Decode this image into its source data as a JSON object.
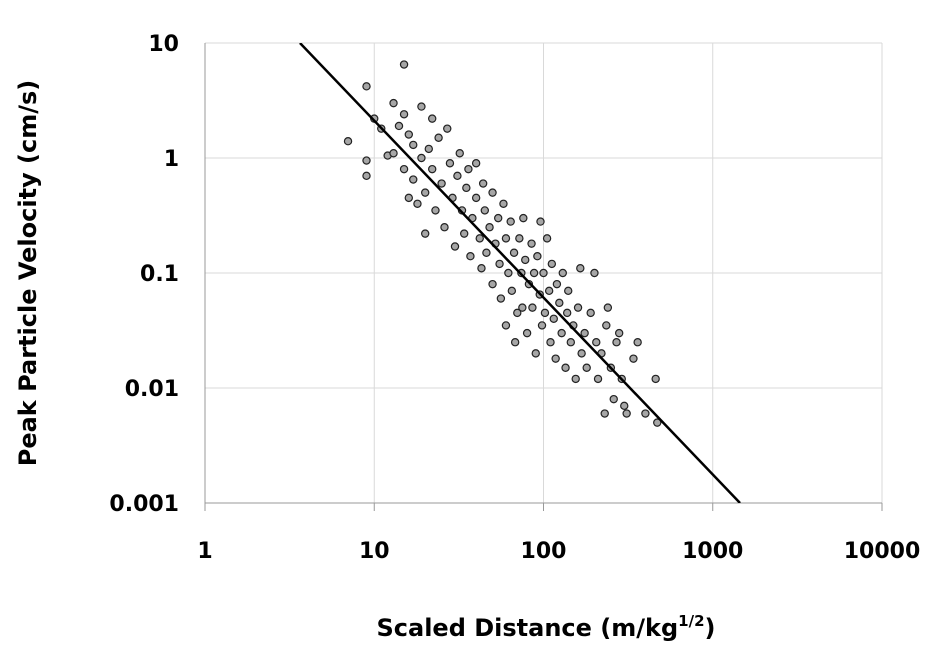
{
  "chart_data": {
    "type": "scatter",
    "x_label": "Scaled Distance (m/kg",
    "x_label_sup": "1/2",
    "x_label_end": ")",
    "y_label": "Peak Particle Velocity (cm/s)",
    "log_x": true,
    "log_y": true,
    "grid": true,
    "xlim": [
      1,
      10000
    ],
    "xticks": [
      1,
      10,
      100,
      1000,
      10000
    ],
    "ylim": [
      0.001,
      10
    ],
    "yticks": [
      0.001,
      0.01,
      0.1,
      1,
      10
    ],
    "series": [
      {
        "color": "#a6a6a6",
        "edge_color": "#222222",
        "x": [
          7,
          9,
          9,
          9,
          10,
          11,
          12,
          13,
          13,
          14,
          15,
          15,
          15,
          16,
          16,
          17,
          17,
          18,
          19,
          19,
          20,
          20,
          21,
          22,
          22,
          23,
          24,
          25,
          26,
          27,
          28,
          29,
          30,
          31,
          32,
          33,
          34,
          35,
          36,
          37,
          38,
          40,
          40,
          42,
          43,
          44,
          45,
          46,
          48,
          50,
          50,
          52,
          54,
          55,
          56,
          58,
          60,
          60,
          62,
          64,
          65,
          67,
          68,
          70,
          72,
          74,
          75,
          76,
          78,
          80,
          82,
          85,
          86,
          88,
          90,
          92,
          95,
          96,
          98,
          100,
          102,
          105,
          108,
          110,
          112,
          115,
          118,
          120,
          124,
          128,
          130,
          135,
          138,
          140,
          145,
          150,
          155,
          160,
          165,
          168,
          175,
          180,
          190,
          200,
          205,
          210,
          220,
          230,
          235,
          240,
          250,
          260,
          270,
          280,
          290,
          300,
          310,
          340,
          360,
          400,
          460,
          470
        ],
        "values": [
          1.4,
          4.2,
          0.95,
          0.7,
          2.2,
          1.8,
          1.05,
          3.0,
          1.1,
          1.9,
          6.5,
          2.4,
          0.8,
          1.6,
          0.45,
          1.3,
          0.65,
          0.4,
          2.8,
          1.0,
          0.22,
          0.5,
          1.2,
          0.8,
          2.2,
          0.35,
          1.5,
          0.6,
          0.25,
          1.8,
          0.9,
          0.45,
          0.17,
          0.7,
          1.1,
          0.35,
          0.22,
          0.55,
          0.8,
          0.14,
          0.3,
          0.9,
          0.45,
          0.2,
          0.11,
          0.6,
          0.35,
          0.15,
          0.25,
          0.5,
          0.08,
          0.18,
          0.3,
          0.12,
          0.06,
          0.4,
          0.2,
          0.035,
          0.1,
          0.28,
          0.07,
          0.15,
          0.025,
          0.045,
          0.2,
          0.1,
          0.05,
          0.3,
          0.13,
          0.03,
          0.08,
          0.18,
          0.05,
          0.1,
          0.02,
          0.14,
          0.065,
          0.28,
          0.035,
          0.1,
          0.045,
          0.2,
          0.07,
          0.025,
          0.12,
          0.04,
          0.018,
          0.08,
          0.055,
          0.03,
          0.1,
          0.015,
          0.045,
          0.07,
          0.025,
          0.035,
          0.012,
          0.05,
          0.11,
          0.02,
          0.03,
          0.015,
          0.045,
          0.1,
          0.025,
          0.012,
          0.02,
          0.006,
          0.035,
          0.05,
          0.015,
          0.008,
          0.025,
          0.03,
          0.012,
          0.007,
          0.006,
          0.018,
          0.025,
          0.006,
          0.012,
          0.005
        ]
      },
      {
        "type": "line",
        "color": "#000000",
        "x": [
          3.64,
          1449
        ],
        "values": [
          10,
          0.001
        ]
      }
    ]
  }
}
